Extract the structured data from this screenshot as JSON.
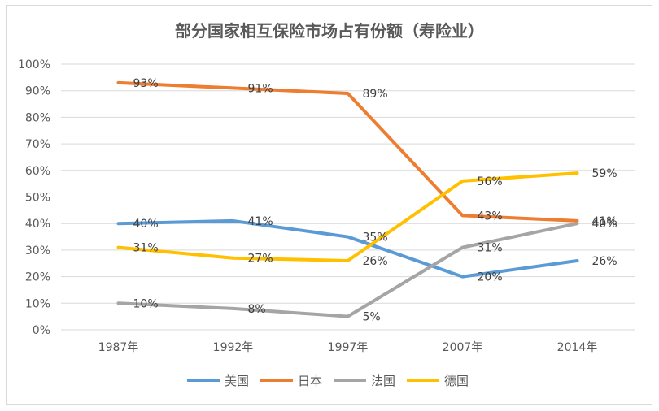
{
  "chart_data": {
    "type": "line",
    "title": "部分国家相互保险市场占有份额（寿险业）",
    "categories": [
      "1987年",
      "1992年",
      "1997年",
      "2007年",
      "2014年"
    ],
    "ylim": [
      0,
      100
    ],
    "yticks": [
      "0%",
      "10%",
      "20%",
      "30%",
      "40%",
      "50%",
      "60%",
      "70%",
      "80%",
      "90%",
      "100%"
    ],
    "grid": true,
    "legend_position": "bottom",
    "series": [
      {
        "name": "美国",
        "color": "#5b9bd5",
        "values": [
          40,
          41,
          35,
          20,
          26
        ],
        "labels": [
          "40%",
          "41%",
          "35%",
          "20%",
          "26%"
        ]
      },
      {
        "name": "日本",
        "color": "#ed7d31",
        "values": [
          93,
          91,
          89,
          43,
          41
        ],
        "labels": [
          "93%",
          "91%",
          "89%",
          "43%",
          "41%"
        ]
      },
      {
        "name": "法国",
        "color": "#a5a5a5",
        "values": [
          10,
          8,
          5,
          31,
          40
        ],
        "labels": [
          "10%",
          "8%",
          "5%",
          "31%",
          "40%"
        ]
      },
      {
        "name": "德国",
        "color": "#ffc000",
        "values": [
          31,
          27,
          26,
          56,
          59
        ],
        "labels": [
          "31%",
          "27%",
          "26%",
          "56%",
          "59%"
        ]
      }
    ]
  }
}
